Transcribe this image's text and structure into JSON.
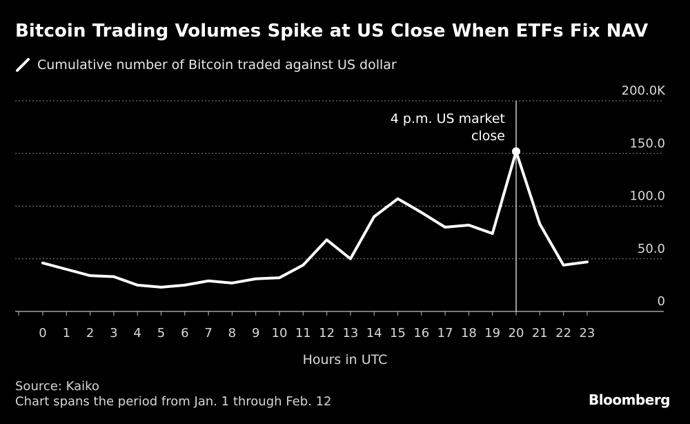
{
  "title": "Bitcoin Trading Volumes Spike at US Close When ETFs Fix NAV",
  "legend_label": "Cumulative number of Bitcoin traded against US dollar",
  "source": "Source: Kaiko",
  "note": "Chart spans the period from Jan. 1 through Feb. 12",
  "brand": "Bloomberg",
  "colors": {
    "background": "#000000",
    "line": "#ffffff",
    "grid": "#8c8c8c",
    "text": "#ffffff"
  },
  "chart_data": {
    "type": "line",
    "title": "Bitcoin Trading Volumes Spike at US Close When ETFs Fix NAV",
    "xlabel": "Hours in UTC",
    "ylabel": "",
    "categories": [
      "0",
      "1",
      "2",
      "3",
      "4",
      "5",
      "6",
      "7",
      "8",
      "9",
      "10",
      "11",
      "12",
      "13",
      "14",
      "15",
      "16",
      "17",
      "18",
      "19",
      "20",
      "21",
      "22",
      "23"
    ],
    "series": [
      {
        "name": "Cumulative number of Bitcoin traded against US dollar",
        "values": [
          46,
          40,
          34,
          33,
          25,
          23,
          25,
          29,
          27,
          31,
          32,
          44,
          68,
          50,
          90,
          107,
          94,
          80,
          82,
          74,
          152,
          83,
          44,
          47
        ]
      }
    ],
    "ylim": [
      0,
      200
    ],
    "yticks": [
      {
        "value": 0,
        "label": "0"
      },
      {
        "value": 50,
        "label": "50.0"
      },
      {
        "value": 100,
        "label": "100.0"
      },
      {
        "value": 150,
        "label": "150.0"
      },
      {
        "value": 200,
        "label": "200.0K"
      }
    ],
    "grid": true,
    "annotation": {
      "x": "20",
      "lines": [
        "4 p.m. US market",
        "close"
      ]
    }
  }
}
